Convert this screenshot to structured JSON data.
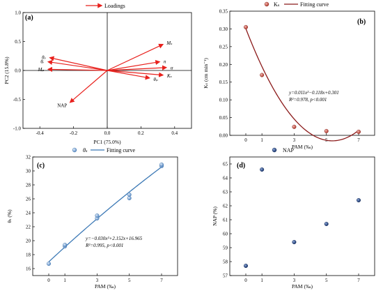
{
  "chart_data": [
    {
      "panel": "(a)",
      "type": "scatter",
      "subtype": "pca-loadings-biplot",
      "legend": "Loadings",
      "xlabel": "PC1 (75.0%)",
      "ylabel": "PC2 (15.8%)",
      "xlim": [
        -0.5,
        0.5
      ],
      "ylim": [
        -1.0,
        1.0
      ],
      "xticks": [
        "-0.4",
        "-0.2",
        "0.0",
        "0.2",
        "0.4"
      ],
      "yticks": [
        "-1.0",
        "-0.5",
        "0.0",
        "0.5",
        "1.0"
      ],
      "vectors": [
        {
          "label": "Mₛ",
          "x": 0.33,
          "y": 0.45
        },
        {
          "label": "n",
          "x": 0.31,
          "y": 0.15
        },
        {
          "label": "α",
          "x": 0.35,
          "y": 0.05
        },
        {
          "label": "Kₛ",
          "x": 0.33,
          "y": -0.08
        },
        {
          "label": "θₚ",
          "x": 0.25,
          "y": -0.13
        },
        {
          "label": "θₛ",
          "x": -0.34,
          "y": 0.22
        },
        {
          "label": "θᵣ",
          "x": -0.35,
          "y": 0.15
        },
        {
          "label": "Mₚ",
          "x": -0.35,
          "y": 0.02
        },
        {
          "label": "NAP",
          "x": -0.22,
          "y": -0.55
        }
      ],
      "color": "#e8201c"
    },
    {
      "panel": "(b)",
      "type": "scatter",
      "legend": [
        "Kₛ",
        "Fitting curve"
      ],
      "xlabel": "PAM (‰)",
      "ylabel": "Kₛ (cm min⁻¹)",
      "xticks": [
        "0",
        "1",
        "3",
        "5",
        "7"
      ],
      "ylim": [
        0,
        0.35
      ],
      "yticks": [
        "0.00",
        "0.05",
        "0.10",
        "0.15",
        "0.20",
        "0.25",
        "0.30",
        "0.35"
      ],
      "x": [
        0,
        1,
        3,
        5,
        7
      ],
      "values": [
        0.305,
        0.17,
        0.024,
        0.012,
        0.01
      ],
      "fit": {
        "a": 0.011,
        "b": -0.118,
        "c": 0.301
      },
      "equation": [
        "y=0.011x²−0.118x+0.301",
        "R²=0.978, p<0.001"
      ],
      "point_color": "#c0392b",
      "line_color": "#8b1a1a"
    },
    {
      "panel": "(c)",
      "type": "scatter",
      "legend": [
        "θₛ",
        "Fitting curve"
      ],
      "xlabel": "PAM (‰)",
      "ylabel": "θₛ (%)",
      "xticks": [
        "0",
        "1",
        "3",
        "5",
        "7"
      ],
      "ylim": [
        15,
        32
      ],
      "yticks": [
        "16",
        "18",
        "20",
        "22",
        "24",
        "26",
        "28",
        "30",
        "32"
      ],
      "x": [
        0,
        1,
        1,
        3,
        3,
        5,
        5,
        7,
        7
      ],
      "values": [
        16.7,
        19.2,
        19.4,
        23.2,
        23.6,
        26.1,
        26.6,
        30.7,
        30.9
      ],
      "fit": {
        "a": -0.03,
        "b": 2.152,
        "c": 16.965
      },
      "equation": [
        "y=−0.030x²+2.152x+16.965",
        "R²=0.995, p<0.001"
      ],
      "point_color": "#7fa7d6",
      "line_color": "#3b78b5"
    },
    {
      "panel": "(d)",
      "type": "scatter",
      "legend": [
        "NAP"
      ],
      "xlabel": "PAM (‰)",
      "ylabel": "NAP (%)",
      "xticks": [
        "0",
        "1",
        "3",
        "5",
        "7"
      ],
      "ylim": [
        57,
        65.5
      ],
      "yticks": [
        "57",
        "58",
        "59",
        "60",
        "61",
        "62",
        "63",
        "64",
        "65"
      ],
      "x": [
        0,
        1,
        3,
        5,
        7
      ],
      "values": [
        57.7,
        64.6,
        59.4,
        60.7,
        62.4
      ],
      "point_color": "#1f3f7a"
    }
  ]
}
